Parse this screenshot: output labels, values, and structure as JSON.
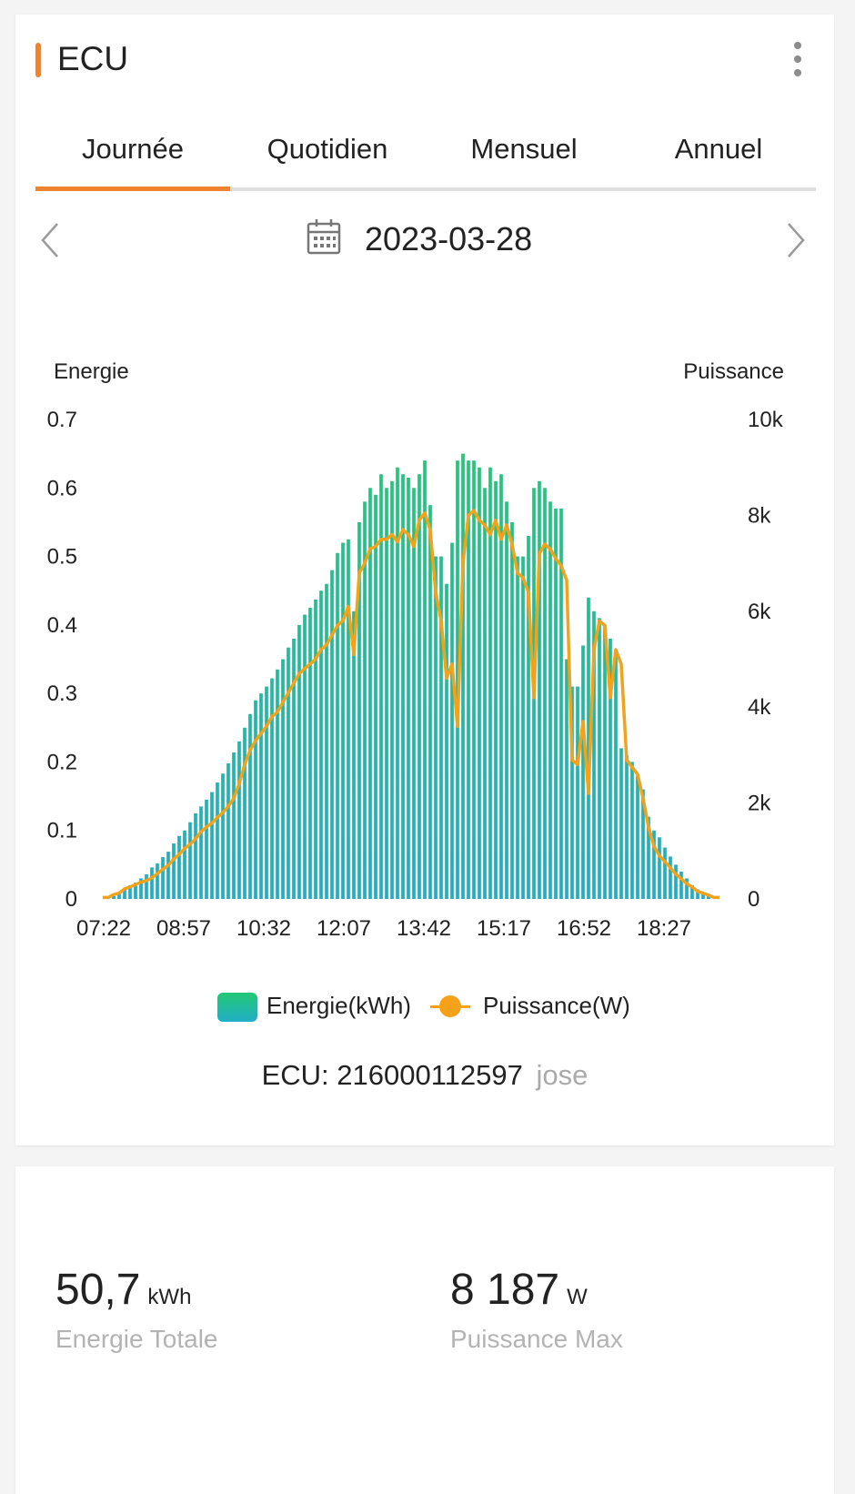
{
  "header": {
    "title": "ECU",
    "accent_color": "#f0832f",
    "menu_icon": "more-vertical-icon"
  },
  "tabs": [
    {
      "label": "Journée",
      "active": true
    },
    {
      "label": "Quotidien",
      "active": false
    },
    {
      "label": "Mensuel",
      "active": false
    },
    {
      "label": "Annuel",
      "active": false
    }
  ],
  "date_nav": {
    "date": "2023-03-28",
    "prev_icon": "chevron-left-icon",
    "next_icon": "chevron-right-icon",
    "calendar_icon": "calendar-icon"
  },
  "chart_data": {
    "type": "bar",
    "left_axis_title": "Energie",
    "right_axis_title": "Puissance",
    "left_ylim": [
      0,
      0.7
    ],
    "left_ticks": [
      "0",
      "0.1",
      "0.2",
      "0.3",
      "0.4",
      "0.5",
      "0.6",
      "0.7"
    ],
    "right_ylim": [
      0,
      10000
    ],
    "right_ticks": [
      "0",
      "2k",
      "4k",
      "6k",
      "8k",
      "10k"
    ],
    "x_tick_labels": [
      "07:22",
      "08:57",
      "10:32",
      "12:07",
      "13:42",
      "15:17",
      "16:52",
      "18:27"
    ],
    "grid": false,
    "legend_position": "bottom",
    "colors": {
      "energy_top": "#22c874",
      "energy_bottom": "#21aec8",
      "power": "#f5a21a"
    },
    "series": [
      {
        "name": "Energie(kWh)",
        "type": "bar",
        "axis": "left",
        "values": [
          0,
          0,
          0.004,
          0.01,
          0.015,
          0.02,
          0.024,
          0.03,
          0.036,
          0.046,
          0.052,
          0.061,
          0.069,
          0.081,
          0.092,
          0.1,
          0.112,
          0.125,
          0.135,
          0.145,
          0.156,
          0.17,
          0.183,
          0.198,
          0.214,
          0.23,
          0.25,
          0.27,
          0.29,
          0.3,
          0.31,
          0.322,
          0.335,
          0.35,
          0.367,
          0.38,
          0.4,
          0.415,
          0.425,
          0.437,
          0.45,
          0.46,
          0.48,
          0.505,
          0.52,
          0.525,
          0.42,
          0.55,
          0.58,
          0.6,
          0.59,
          0.62,
          0.6,
          0.61,
          0.63,
          0.62,
          0.615,
          0.6,
          0.62,
          0.64,
          0.575,
          0.5,
          0.5,
          0.46,
          0.52,
          0.64,
          0.65,
          0.64,
          0.64,
          0.63,
          0.6,
          0.63,
          0.61,
          0.62,
          0.58,
          0.55,
          0.5,
          0.5,
          0.53,
          0.6,
          0.61,
          0.6,
          0.58,
          0.57,
          0.57,
          0.35,
          0.31,
          0.31,
          0.37,
          0.44,
          0.42,
          0.41,
          0.4,
          0.38,
          0.36,
          0.22,
          0.21,
          0.2,
          0.18,
          0.16,
          0.12,
          0.1,
          0.09,
          0.075,
          0.062,
          0.05,
          0.04,
          0.03,
          0.02,
          0.014,
          0.008,
          0.004,
          0,
          0
        ]
      },
      {
        "name": "Puissance(W)",
        "type": "line",
        "axis": "right",
        "values": [
          30,
          30,
          90,
          120,
          210,
          250,
          300,
          350,
          380,
          440,
          530,
          620,
          700,
          830,
          930,
          1050,
          1140,
          1250,
          1400,
          1500,
          1580,
          1700,
          1800,
          1930,
          2100,
          2400,
          2800,
          3100,
          3300,
          3450,
          3600,
          3800,
          3900,
          4100,
          4300,
          4500,
          4700,
          4800,
          4900,
          5000,
          5200,
          5300,
          5500,
          5700,
          5800,
          6100,
          5100,
          6800,
          7000,
          7300,
          7350,
          7500,
          7500,
          7600,
          7450,
          7700,
          7600,
          7350,
          7900,
          8050,
          7700,
          6400,
          5800,
          4600,
          4900,
          3600,
          7000,
          8000,
          8100,
          7900,
          7800,
          7600,
          7900,
          7500,
          7800,
          7400,
          6800,
          6700,
          6400,
          4200,
          7200,
          7400,
          7300,
          7100,
          6950,
          6650,
          2900,
          2800,
          3700,
          2200,
          5200,
          5800,
          5700,
          4200,
          5200,
          4900,
          2900,
          2750,
          2600,
          2100,
          1500,
          1100,
          900,
          780,
          650,
          520,
          420,
          320,
          250,
          160,
          120,
          80,
          30,
          30
        ]
      }
    ]
  },
  "legend": {
    "energy_label": "Energie(kWh)",
    "power_label": "Puissance(W)"
  },
  "device": {
    "ecu_label": "ECU:",
    "ecu_id": "216000112597",
    "owner": "jose"
  },
  "stats": {
    "total_energy": {
      "value": "50,7",
      "unit": "kWh",
      "label": "Energie Totale"
    },
    "max_power": {
      "value": "8 187",
      "unit": "W",
      "label": "Puissance Max"
    }
  }
}
